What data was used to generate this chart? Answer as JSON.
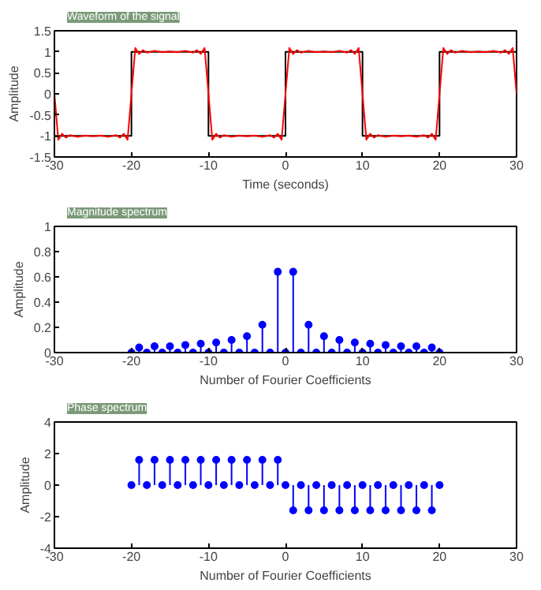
{
  "chart_data": [
    {
      "type": "line",
      "title": "Waveform of the signal",
      "xlabel": "Time (seconds)",
      "ylabel": "Amplitude",
      "xlim": [
        -30,
        30
      ],
      "ylim": [
        -1.5,
        1.5
      ],
      "xticks": [
        -30,
        -20,
        -10,
        0,
        10,
        20,
        30
      ],
      "yticks": [
        -1.5,
        -1,
        -0.5,
        0,
        0.5,
        1,
        1.5
      ],
      "series": [
        {
          "color": "#000000",
          "x": [
            -30,
            -30,
            -20,
            -20,
            -10,
            -10,
            0,
            0,
            10,
            10,
            20,
            20,
            30,
            30
          ],
          "values": [
            0,
            -1,
            -1,
            1,
            1,
            -1,
            -1,
            1,
            1,
            -1,
            -1,
            1,
            1,
            0
          ]
        },
        {
          "color": "#ff0000",
          "x": [
            -30,
            -29.5,
            -29,
            -28.5,
            -28,
            -27,
            -26,
            -25,
            -24,
            -23,
            -22,
            -21.5,
            -21,
            -20.5,
            -20,
            -19.5,
            -19,
            -18.5,
            -18,
            -17,
            -16,
            -15,
            -14,
            -13,
            -12,
            -11.5,
            -11,
            -10.5,
            -10,
            -9.5,
            -9,
            -8.5,
            -8,
            -7,
            -6,
            -5,
            -4,
            -3,
            -2,
            -1.5,
            -1,
            -0.5,
            0,
            0.5,
            1,
            1.5,
            2,
            3,
            4,
            5,
            6,
            7,
            8,
            8.5,
            9,
            9.5,
            10,
            10.5,
            11,
            11.5,
            12,
            13,
            14,
            15,
            16,
            17,
            18,
            18.5,
            19,
            19.5,
            20,
            20.5,
            21,
            21.5,
            22,
            23,
            24,
            25,
            26,
            27,
            28,
            28.5,
            29,
            29.5,
            30
          ],
          "values": [
            0,
            -1.09,
            -0.95,
            -1.04,
            -0.98,
            -1.02,
            -0.99,
            -1.01,
            -0.99,
            -1.02,
            -0.98,
            -1.04,
            -0.95,
            -1.09,
            0,
            1.09,
            0.95,
            1.04,
            0.98,
            1.02,
            0.99,
            1.01,
            0.99,
            1.02,
            0.98,
            1.04,
            0.95,
            1.09,
            0,
            -1.09,
            -0.95,
            -1.04,
            -0.98,
            -1.02,
            -0.99,
            -1.01,
            -0.99,
            -1.02,
            -0.98,
            -1.04,
            -0.95,
            -1.09,
            0,
            1.09,
            0.95,
            1.04,
            0.98,
            1.02,
            0.99,
            1.01,
            0.99,
            1.02,
            0.98,
            1.04,
            0.95,
            1.09,
            0,
            -1.09,
            -0.95,
            -1.04,
            -0.98,
            -1.02,
            -0.99,
            -1.01,
            -0.99,
            -1.02,
            -0.98,
            -1.04,
            -0.95,
            -1.09,
            0,
            1.09,
            0.95,
            1.04,
            0.98,
            1.02,
            0.99,
            1.01,
            0.99,
            1.02,
            0.98,
            1.04,
            0.95,
            1.09,
            0
          ]
        }
      ]
    },
    {
      "type": "lollipop",
      "title": "Magnitude spectrum",
      "xlabel": "Number of Fourier Coefficients",
      "ylabel": "Amplitude",
      "xlim": [
        -30,
        30
      ],
      "ylim": [
        0,
        1
      ],
      "xticks": [
        -30,
        -20,
        -10,
        0,
        10,
        20,
        30
      ],
      "yticks": [
        0,
        0.2,
        0.4,
        0.6,
        0.8,
        1
      ],
      "marker": "circle",
      "color": "#0000ff",
      "x": [
        -20,
        -19,
        -18,
        -17,
        -16,
        -15,
        -14,
        -13,
        -12,
        -11,
        -10,
        -9,
        -8,
        -7,
        -6,
        -5,
        -4,
        -3,
        -2,
        -1,
        0,
        1,
        2,
        3,
        4,
        5,
        6,
        7,
        8,
        9,
        10,
        11,
        12,
        13,
        14,
        15,
        16,
        17,
        18,
        19,
        20
      ],
      "values": [
        0,
        0.04,
        0,
        0.05,
        0,
        0.05,
        0,
        0.06,
        0,
        0.07,
        0,
        0.08,
        0,
        0.1,
        0,
        0.13,
        0,
        0.22,
        0,
        0.64,
        0,
        0.64,
        0,
        0.22,
        0,
        0.13,
        0,
        0.1,
        0,
        0.08,
        0,
        0.07,
        0,
        0.06,
        0,
        0.05,
        0,
        0.05,
        0,
        0.04,
        0
      ]
    },
    {
      "type": "lollipop",
      "title": "Phase spectrum",
      "xlabel": "Number of Fourier Coefficients",
      "ylabel": "Amplitude",
      "xlim": [
        -30,
        30
      ],
      "ylim": [
        -4,
        4
      ],
      "xticks": [
        -30,
        -20,
        -10,
        0,
        10,
        20,
        30
      ],
      "yticks": [
        -4,
        -2,
        0,
        2,
        4
      ],
      "marker": "circle",
      "color": "#0000ff",
      "x": [
        -20,
        -19,
        -18,
        -17,
        -16,
        -15,
        -14,
        -13,
        -12,
        -11,
        -10,
        -9,
        -8,
        -7,
        -6,
        -5,
        -4,
        -3,
        -2,
        -1,
        0,
        1,
        2,
        3,
        4,
        5,
        6,
        7,
        8,
        9,
        10,
        11,
        12,
        13,
        14,
        15,
        16,
        17,
        18,
        19,
        20
      ],
      "values": [
        0,
        1.6,
        0,
        1.6,
        0,
        1.6,
        0,
        1.6,
        0,
        1.6,
        0,
        1.6,
        0,
        1.6,
        0,
        1.6,
        0,
        1.6,
        0,
        1.6,
        0,
        -1.6,
        0,
        -1.6,
        0,
        -1.6,
        0,
        -1.6,
        0,
        -1.6,
        0,
        -1.6,
        0,
        -1.6,
        0,
        -1.6,
        0,
        -1.6,
        0,
        -1.6,
        0
      ]
    }
  ]
}
